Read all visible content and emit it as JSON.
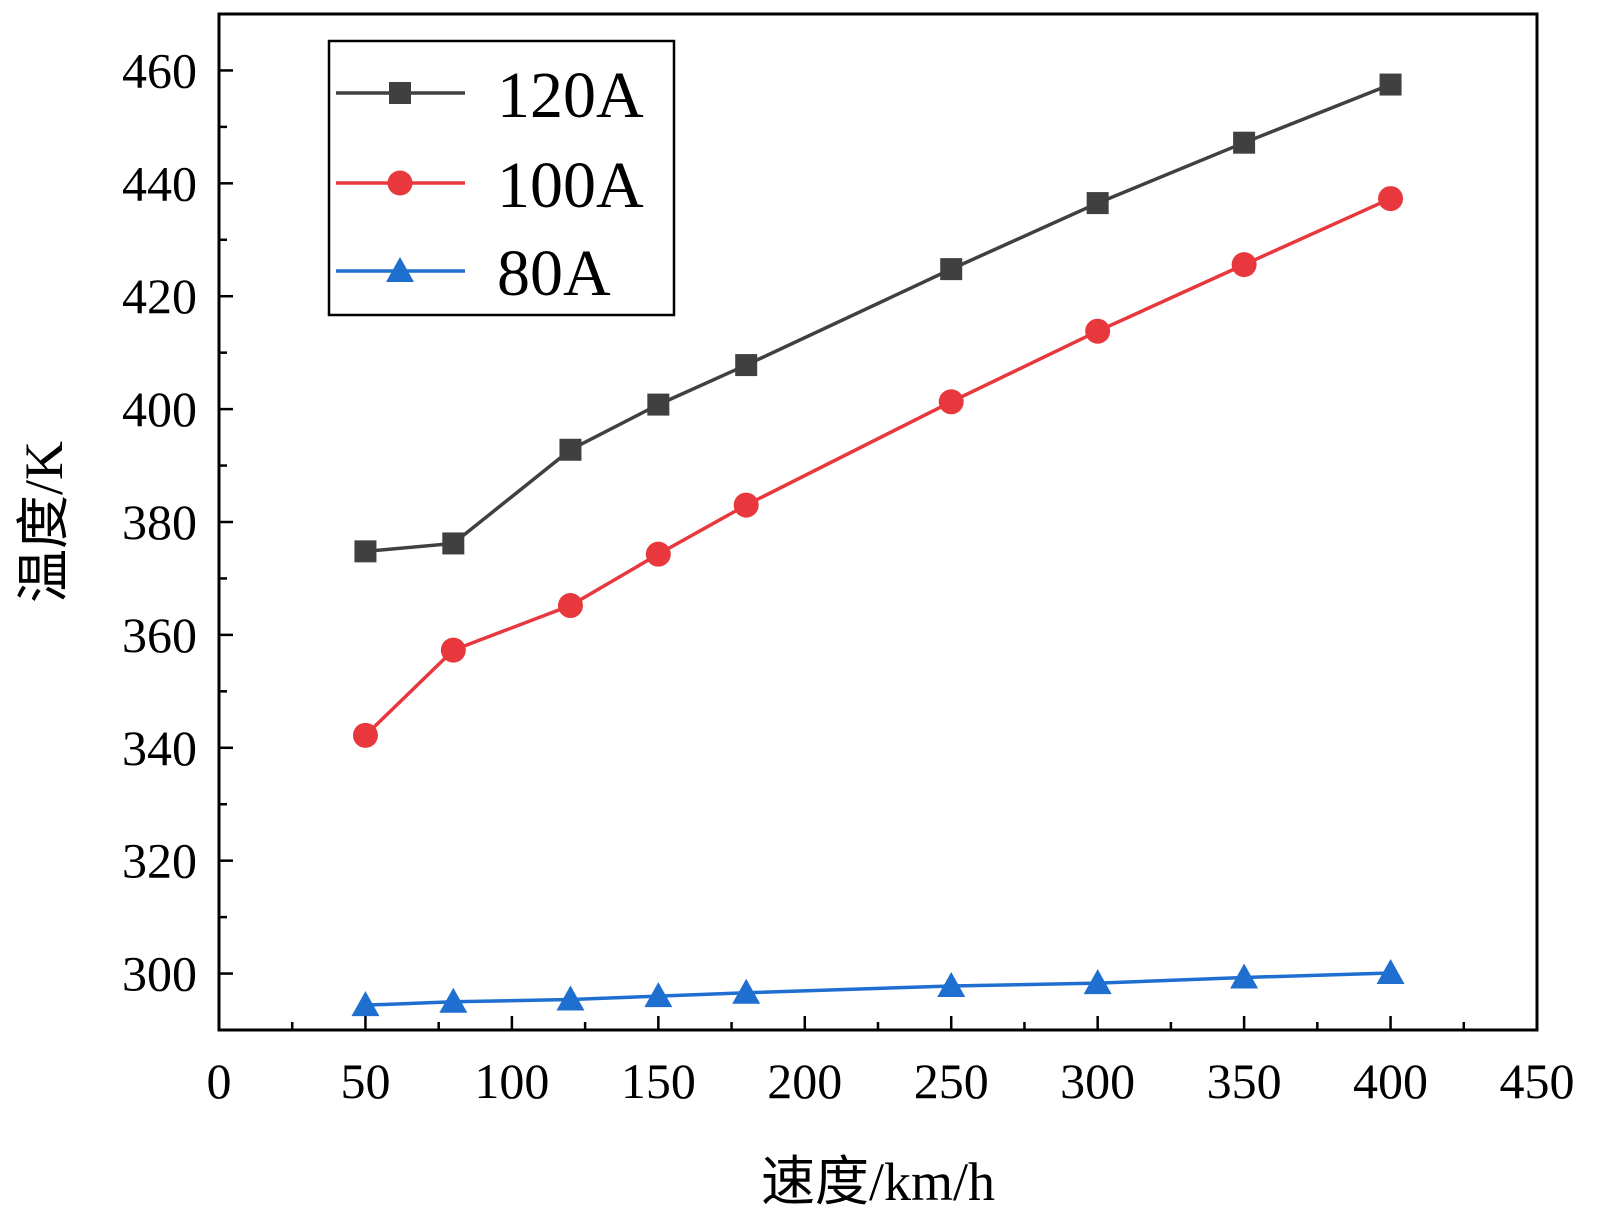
{
  "chart_data": {
    "type": "line",
    "title": "",
    "xlabel": "速度/km/h",
    "ylabel": "温度/K",
    "xlim": [
      0,
      450
    ],
    "ylim": [
      290,
      470
    ],
    "x_ticks": [
      0,
      50,
      100,
      150,
      200,
      250,
      300,
      350,
      400,
      450
    ],
    "y_ticks": [
      300,
      320,
      340,
      360,
      380,
      400,
      420,
      440,
      460
    ],
    "grid": false,
    "legend_position": "top-left",
    "x": [
      50,
      80,
      120,
      150,
      180,
      250,
      300,
      350,
      400
    ],
    "series": [
      {
        "name": "120A",
        "color": "#404040",
        "marker": "square",
        "values": [
          374.8,
          376.2,
          392.8,
          400.8,
          407.8,
          424.8,
          436.5,
          447.2,
          457.5
        ]
      },
      {
        "name": "100A",
        "color": "#e8383d",
        "marker": "circle",
        "values": [
          342.2,
          357.3,
          365.2,
          374.3,
          383.0,
          401.3,
          413.8,
          425.6,
          437.3
        ]
      },
      {
        "name": "80A",
        "color": "#1f6fd1",
        "marker": "triangle",
        "values": [
          294.4,
          295.0,
          295.4,
          296.0,
          296.6,
          297.8,
          298.3,
          299.3,
          300.1
        ]
      }
    ]
  }
}
